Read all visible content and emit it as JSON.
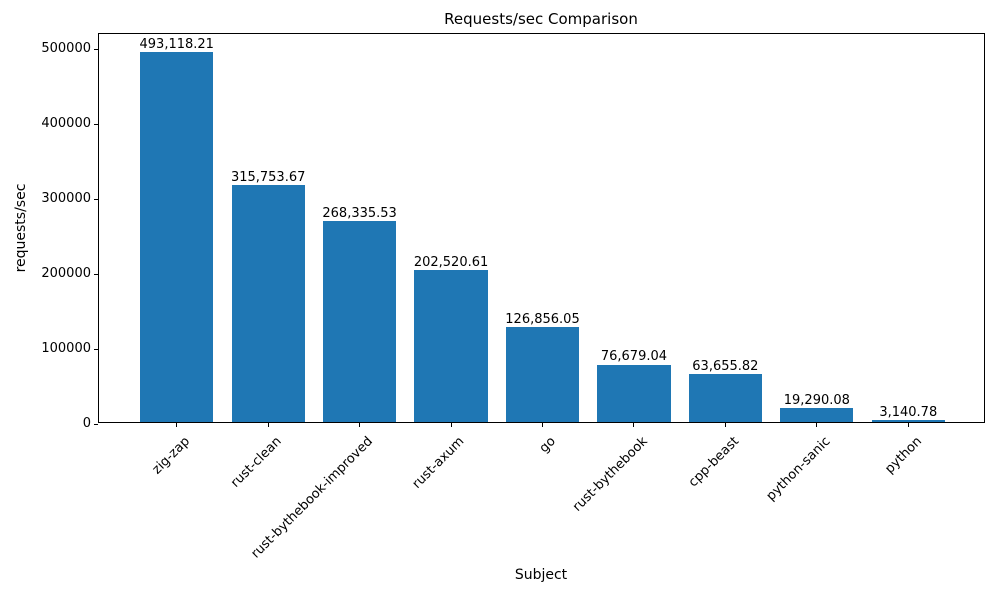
{
  "chart_data": {
    "type": "bar",
    "title": "Requests/sec Comparison",
    "xlabel": "Subject",
    "ylabel": "requests/sec",
    "categories": [
      "zig-zap",
      "rust-clean",
      "rust-bythebook-improved",
      "rust-axum",
      "go",
      "rust-bythebook",
      "cpp-beast",
      "python-sanic",
      "python"
    ],
    "values": [
      493118.21,
      315753.67,
      268335.53,
      202520.61,
      126856.05,
      76679.04,
      63655.82,
      19290.08,
      3140.78
    ],
    "value_labels": [
      "493,118.21",
      "315,753.67",
      "268,335.53",
      "202,520.61",
      "126,856.05",
      "76,679.04",
      "63,655.82",
      "19,290.08",
      "3,140.78"
    ],
    "yticks": [
      0,
      100000,
      200000,
      300000,
      400000,
      500000
    ],
    "ytick_labels": [
      "0",
      "100000",
      "200000",
      "300000",
      "400000",
      "500000"
    ],
    "ylim": [
      0,
      520000
    ],
    "grid": false,
    "legend_position": "none",
    "bar_color": "#1f77b4",
    "text_color": "#000000",
    "spine_color": "#000000"
  }
}
